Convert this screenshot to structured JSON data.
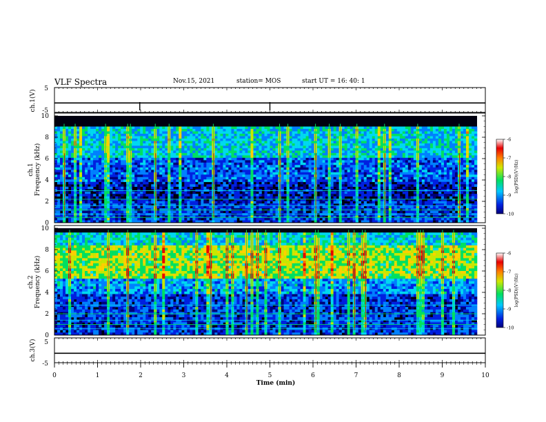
{
  "header": {
    "title": "VLF Spectra",
    "date": "Nov.15, 2021",
    "station": "station= MOS",
    "start_ut": "start  UT =  16: 40: 1"
  },
  "chart_data": [
    {
      "type": "line",
      "panel": "ch1-waveform",
      "ylabel": "ch.1(V)",
      "ylim": [
        -5,
        5
      ],
      "yticks": [
        "5",
        "-5"
      ],
      "series": [
        {
          "values": [
            -1.2,
            -1.2
          ]
        }
      ]
    },
    {
      "type": "heatmap",
      "panel": "ch1-spectrogram",
      "ylabel_top": "ch.1",
      "ylabel": "Frequency (kHz)",
      "ylim": [
        0,
        10
      ],
      "yticks": [
        "10",
        "8",
        "6",
        "4",
        "2",
        "0"
      ],
      "activity_top_kHz": 9.0,
      "colorbar": {
        "label": "log(PSD)(V²/Hz)",
        "range": [
          -10,
          -6
        ],
        "ticks": [
          "-6",
          "-7",
          "-8",
          "-9",
          "-10"
        ]
      }
    },
    {
      "type": "heatmap",
      "panel": "ch2-spectrogram",
      "ylabel_top": "ch.2",
      "ylabel": "Frequency (kHz)",
      "ylim": [
        0,
        10
      ],
      "yticks": [
        "10",
        "8",
        "6",
        "4",
        "2",
        "0"
      ],
      "activity_top_kHz": 9.6,
      "colorbar": {
        "label": "log(PSD)(V²/Hz)",
        "range": [
          -10,
          -6
        ],
        "ticks": [
          "-6",
          "-7",
          "-8",
          "-9",
          "-10"
        ]
      }
    },
    {
      "type": "line",
      "panel": "ch3-waveform",
      "ylabel": "ch.3(V)",
      "ylim": [
        -5,
        5
      ],
      "yticks": [
        "5",
        "-5"
      ],
      "series": [
        {
          "values": [
            -1.2,
            -1.2
          ]
        }
      ]
    }
  ],
  "xaxis": {
    "label": "Time (min)",
    "range": [
      0,
      10
    ],
    "ticks": [
      "0",
      "1",
      "2",
      "3",
      "4",
      "5",
      "6",
      "7",
      "8",
      "9",
      "10"
    ]
  },
  "colors": {
    "c0": "#000000",
    "c1": "#00007a",
    "c2": "#0020e0",
    "c3": "#0080ff",
    "c4": "#00d8f0",
    "c5": "#00e060",
    "c6": "#c8e800",
    "c7": "#ffd000",
    "c8": "#ff7000",
    "c9": "#e80000",
    "c10": "#ffffff"
  }
}
